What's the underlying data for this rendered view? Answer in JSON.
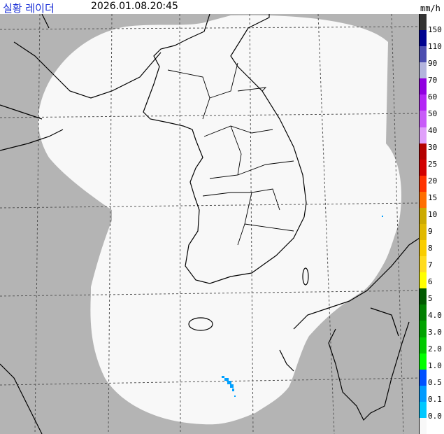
{
  "header": {
    "title": "실황 레이더",
    "timestamp": "2026.01.08.20:45",
    "unit": "mm/h"
  },
  "legend": {
    "colors": [
      "#333333",
      "#000390",
      "#4c4eb0",
      "#b3b4dd",
      "#9000e0",
      "#b326f5",
      "#c85cf8",
      "#e0a0fa",
      "#b40000",
      "#d20000",
      "#ff3200",
      "#ff6e00",
      "#ccaa00",
      "#e0b900",
      "#f9cd00",
      "#ffdc1f",
      "#ffff00",
      "#005a00",
      "#008000",
      "#00a300",
      "#00c900",
      "#00ff00",
      "#0050ff",
      "#009aff",
      "#00c8ff",
      "#f8f8f8"
    ],
    "labels": [
      "150",
      "110",
      "90",
      "70",
      "60",
      "50",
      "40",
      "30",
      "25",
      "20",
      "15",
      "10",
      "9",
      "8",
      "7",
      "6",
      "5",
      "4.0",
      "3.0",
      "2.0",
      "1.0",
      "0.5",
      "0.1",
      "0.0"
    ]
  },
  "map": {
    "background_color": "#b4b4b4",
    "coverage_color": "#f8f8f8",
    "echo_color": "#00a0ff"
  }
}
